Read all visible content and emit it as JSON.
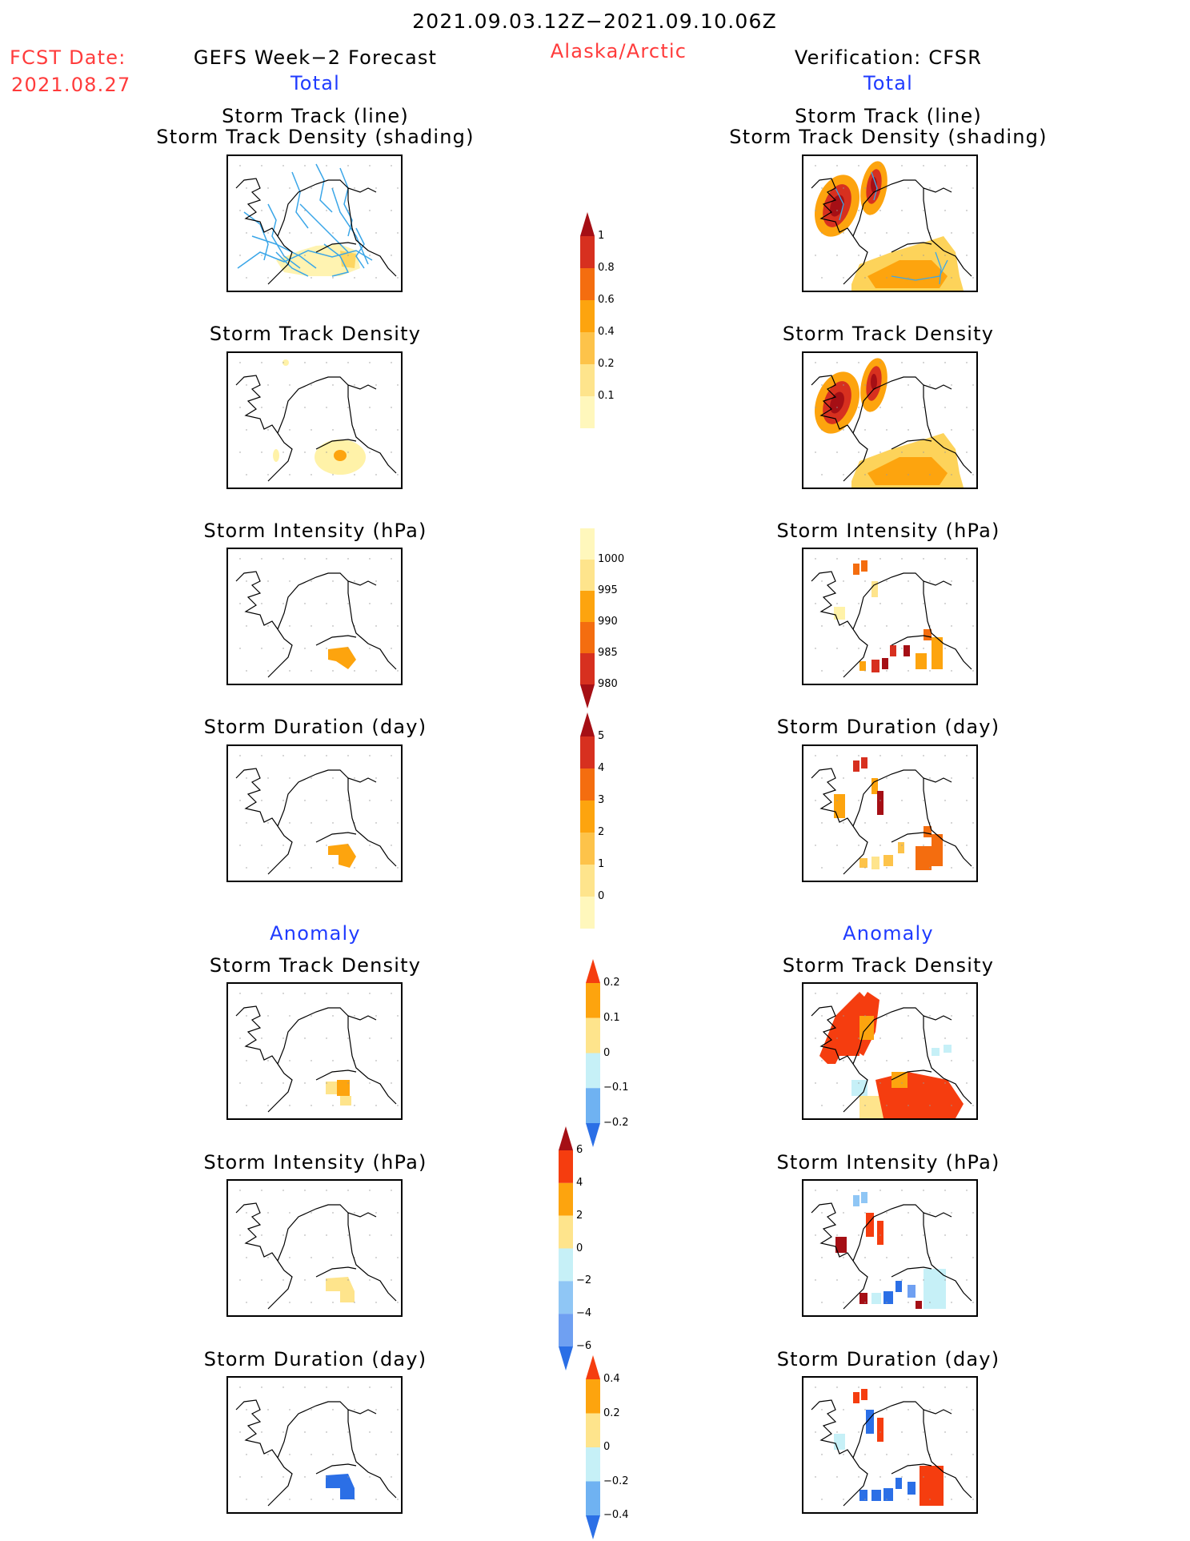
{
  "header": {
    "date_range": "2021.09.03.12Z−2021.09.10.06Z",
    "fcst_label": "FCST Date:",
    "fcst_date": "2021.08.27",
    "left_title": "GEFS Week−2 Forecast",
    "region": "Alaska/Arctic",
    "right_title": "Verification: CFSR"
  },
  "sections": {
    "total": "Total",
    "anomaly": "Anomaly"
  },
  "panel_titles": {
    "track_line": "Storm Track (line)",
    "track_shading": "Storm Track Density (shading)",
    "density": "Storm Track Density",
    "intensity": "Storm Intensity (hPa)",
    "duration": "Storm Duration (day)"
  },
  "colorbars": {
    "density_total": {
      "labels": [
        "1",
        "0.8",
        "0.6",
        "0.4",
        "0.2",
        "0.1"
      ],
      "colors": [
        "#a50f15",
        "#d7301f",
        "#f46d0f",
        "#fda40e",
        "#fdc34a",
        "#fee48c",
        "#fff7bc"
      ]
    },
    "intensity_total": {
      "labels": [
        "1000",
        "995",
        "990",
        "985",
        "980"
      ],
      "colors": [
        "#fff7bc",
        "#fee48c",
        "#fda40e",
        "#f46d0f",
        "#d7301f",
        "#a50f15"
      ]
    },
    "duration_total": {
      "labels": [
        "5",
        "4",
        "3",
        "2",
        "1",
        "0"
      ],
      "colors": [
        "#a50f15",
        "#d7301f",
        "#f46d0f",
        "#fda40e",
        "#fdc34a",
        "#fee48c",
        "#fff7bc"
      ]
    },
    "density_anom": {
      "labels": [
        "0.2",
        "0.1",
        "0",
        "−0.1",
        "−0.2"
      ],
      "colors": [
        "#f53d0f",
        "#fda40e",
        "#fee48c",
        "#c6f0f7",
        "#6fb2f2",
        "#2b6fe6"
      ]
    },
    "intensity_anom": {
      "labels": [
        "6",
        "4",
        "2",
        "0",
        "−2",
        "−4",
        "−6"
      ],
      "colors": [
        "#a50f15",
        "#f53d0f",
        "#fda40e",
        "#fee48c",
        "#c6f0f7",
        "#8fc6f5",
        "#6fa0f2",
        "#2b6fe6"
      ]
    },
    "duration_anom": {
      "labels": [
        "0.4",
        "0.2",
        "0",
        "−0.2",
        "−0.4"
      ],
      "colors": [
        "#f53d0f",
        "#fda40e",
        "#fee48c",
        "#c6f0f7",
        "#6fb2f2",
        "#2b6fe6"
      ]
    }
  }
}
